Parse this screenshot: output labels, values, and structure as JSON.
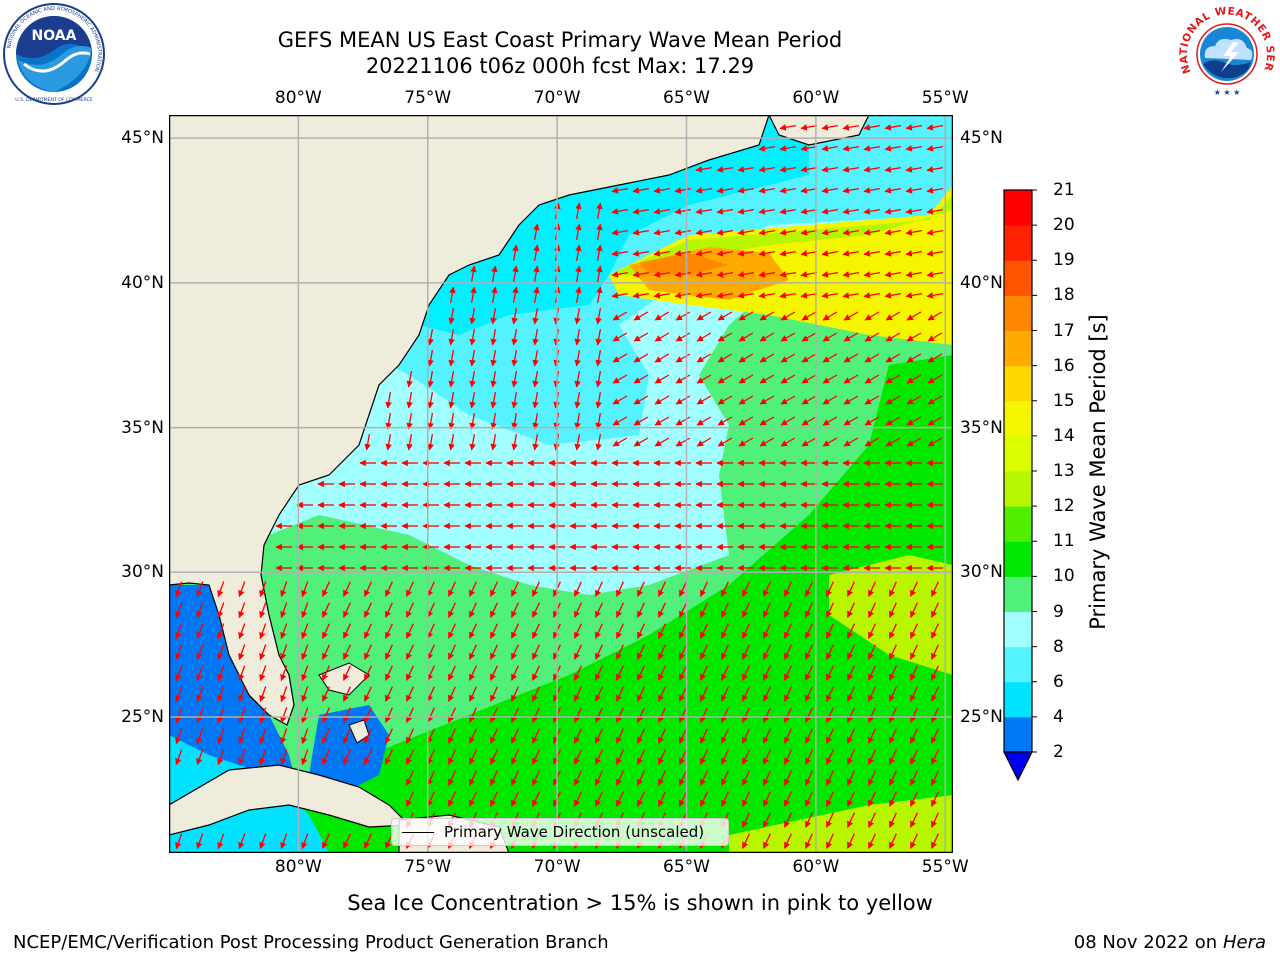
{
  "title": {
    "line1": "GEFS MEAN US East Coast Primary Wave Mean Period",
    "line2": "20221106 t06z 000h fcst   Max: 17.29"
  },
  "logos": {
    "left": "noaa-logo",
    "right": "nws-logo",
    "left_ring_text": "NATIONAL OCEANIC AND ATMOSPHERIC ADMINISTRATION",
    "left_bottom_text": "U.S. DEPARTMENT OF COMMERCE",
    "left_center_text": "NOAA",
    "right_ring_text": "NATIONAL WEATHER SERVICE"
  },
  "map": {
    "lon_labels": [
      "80°W",
      "75°W",
      "70°W",
      "65°W",
      "60°W",
      "55°W"
    ],
    "lat_labels": [
      "45°N",
      "40°N",
      "35°N",
      "30°N",
      "25°N"
    ],
    "lon_values": [
      -80,
      -75,
      -70,
      -65,
      -60,
      -55
    ],
    "lat_values": [
      45,
      40,
      35,
      30,
      25
    ],
    "extent": {
      "lon": [
        -85,
        -54.7
      ],
      "lat": [
        20.3,
        45.8
      ]
    },
    "land_color": "#efecdc",
    "arrow_color": "#ff0000",
    "grid_color": "#b0b0b0"
  },
  "colorbar": {
    "label": "Primary Wave Mean Period [s]",
    "ticks": [
      "21",
      "20",
      "19",
      "18",
      "17",
      "16",
      "15",
      "14",
      "13",
      "12",
      "11",
      "10",
      "9",
      "8",
      "6",
      "4",
      "2"
    ],
    "tick_values": [
      21,
      20,
      19,
      18,
      17,
      16,
      15,
      14,
      13,
      12,
      11,
      10,
      9,
      8,
      6,
      4,
      2
    ],
    "colors": [
      "#0000ee",
      "#0078f5",
      "#00e2ff",
      "#55f2ff",
      "#a2ffff",
      "#50f07a",
      "#00e800",
      "#52ee00",
      "#b8f500",
      "#dcff00",
      "#f5f500",
      "#ffd800",
      "#ffaa00",
      "#ff8800",
      "#ff5500",
      "#ff2200",
      "#ff0000"
    ]
  },
  "legend": {
    "text": "Primary Wave Direction (unscaled)"
  },
  "subtitle": "Sea Ice Concentration > 15% is shown in pink to yellow",
  "footer": {
    "left": "NCEP/EMC/Verification Post Processing Product Generation Branch",
    "date": "08 Nov 2022 on",
    "host": "Hera"
  }
}
